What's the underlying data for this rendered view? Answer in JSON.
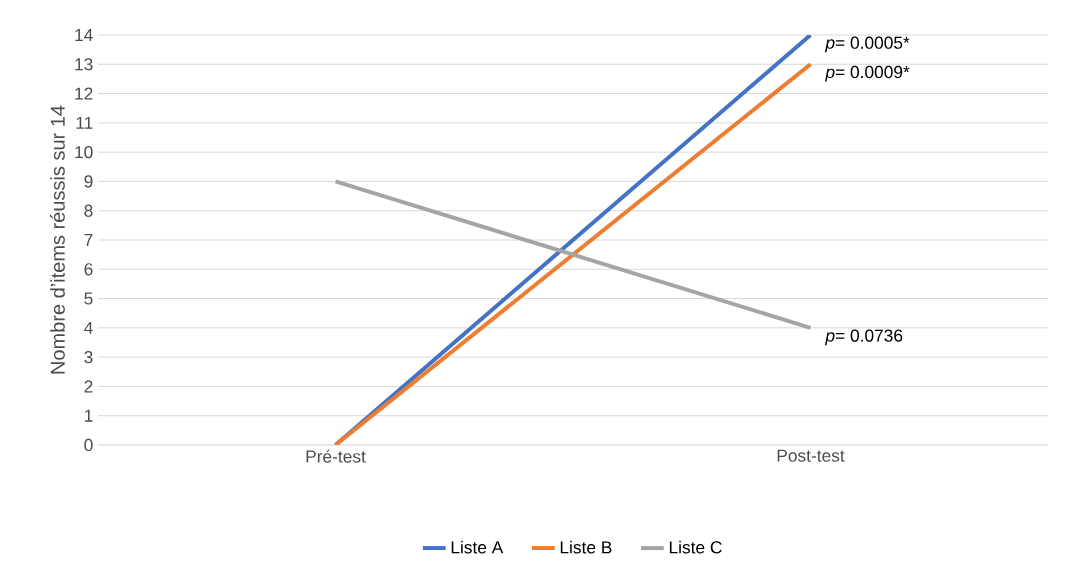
{
  "chart_data": {
    "type": "line",
    "ylabel": "Nombre d’items réussis sur 14",
    "categories": [
      "Pré-test",
      "Post-test"
    ],
    "series": [
      {
        "name": "Liste A",
        "color": "#4472c4",
        "values": [
          0,
          14
        ]
      },
      {
        "name": "Liste B",
        "color": "#ed7d31",
        "values": [
          0,
          13
        ]
      },
      {
        "name": "Liste C",
        "color": "#a5a5a5",
        "values": [
          9,
          4
        ]
      }
    ],
    "ylim": [
      0,
      14
    ],
    "yticks": [
      0,
      1,
      2,
      3,
      4,
      5,
      6,
      7,
      8,
      9,
      10,
      11,
      12,
      13,
      14
    ],
    "grid": "y",
    "legend": "bottom",
    "marker": "none",
    "line_style": "solid",
    "annotations": [
      {
        "text": "*p*= 0.0005*",
        "x": "Post-test",
        "y": 14
      },
      {
        "text": "*p*= 0.0009*",
        "x": "Post-test",
        "y": 13
      },
      {
        "text": "*p*= 0.0736",
        "x": "Post-test",
        "y": 4
      }
    ]
  }
}
